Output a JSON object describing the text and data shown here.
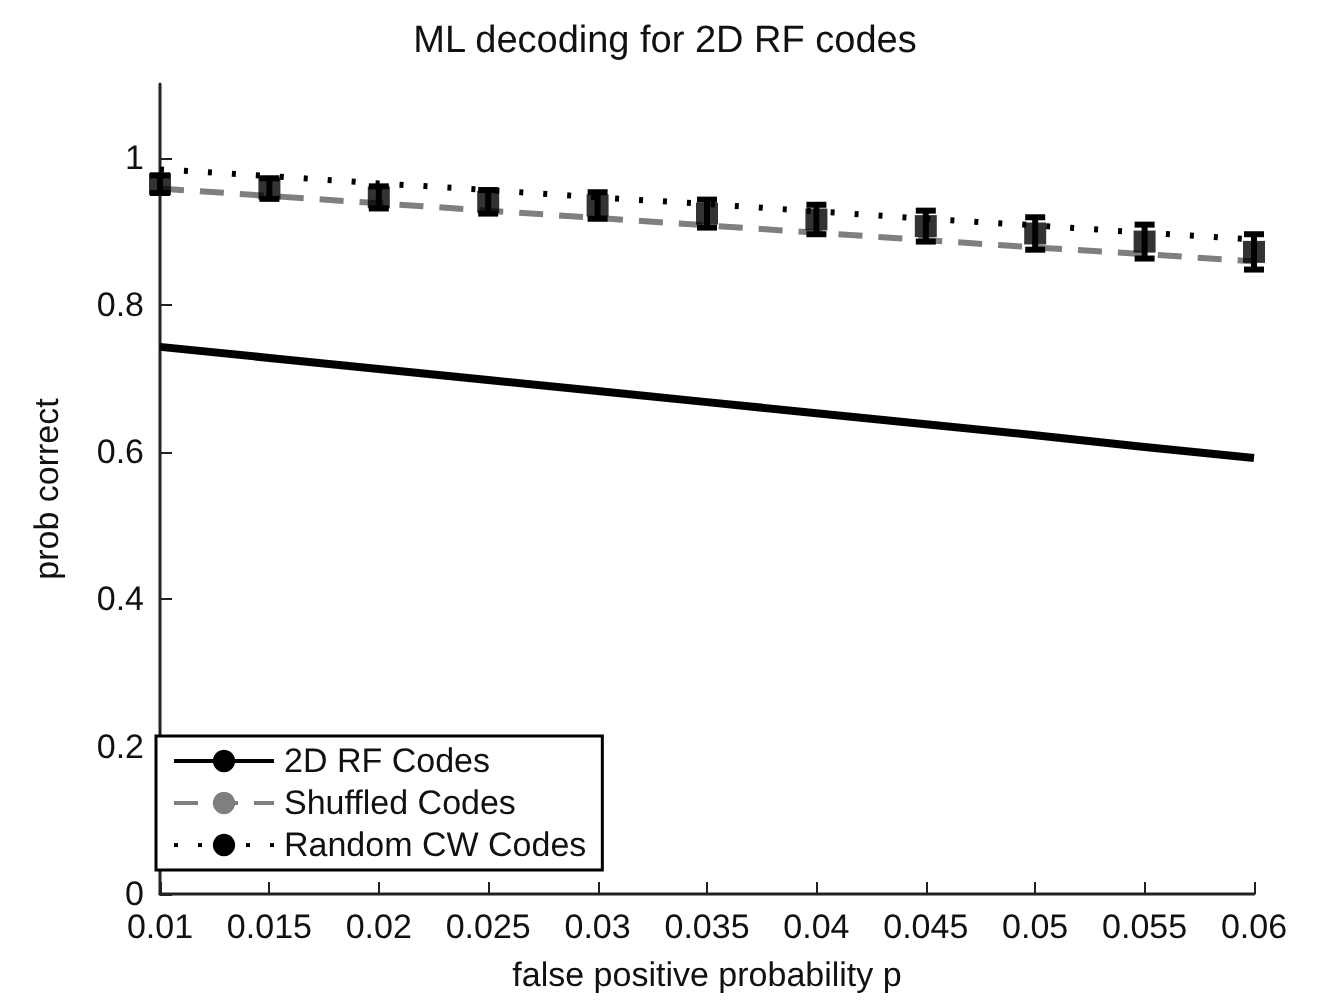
{
  "chart_data": {
    "type": "line",
    "title": "ML decoding for 2D RF codes",
    "xlabel": "false positive probability p",
    "ylabel": "prob correct",
    "x": [
      0.01,
      0.015,
      0.02,
      0.025,
      0.03,
      0.035,
      0.04,
      0.045,
      0.05,
      0.055,
      0.06
    ],
    "xlim": [
      0.01,
      0.06
    ],
    "xticks": [
      0.01,
      0.015,
      0.02,
      0.025,
      0.03,
      0.035,
      0.04,
      0.045,
      0.05,
      0.055,
      0.06
    ],
    "ylim": [
      0,
      1.1
    ],
    "yticks": [
      0,
      0.2,
      0.4,
      0.6,
      0.8,
      1
    ],
    "series": [
      {
        "name": "2D RF Codes",
        "color": "#000000",
        "line_style": "solid",
        "values": [
          0.743,
          0.728,
          0.713,
          0.698,
          0.683,
          0.668,
          0.653,
          0.638,
          0.623,
          0.607,
          0.592
        ]
      },
      {
        "name": "Shuffled Codes",
        "color": "#7f7f7f",
        "line_style": "dashed",
        "values": [
          0.958,
          0.948,
          0.938,
          0.928,
          0.918,
          0.908,
          0.898,
          0.888,
          0.878,
          0.869,
          0.859
        ]
      },
      {
        "name": "Random CW Codes",
        "color": "#000000",
        "line_style": "dotted",
        "values": [
          0.984,
          0.975,
          0.965,
          0.956,
          0.946,
          0.937,
          0.927,
          0.917,
          0.908,
          0.898,
          0.889
        ]
      },
      {
        "type": "scatter",
        "color": "#000000",
        "marker": "square",
        "values": [
          0.964,
          0.958,
          0.946,
          0.94,
          0.935,
          0.924,
          0.916,
          0.907,
          0.897,
          0.886,
          0.872
        ],
        "errors": [
          0.012,
          0.014,
          0.015,
          0.016,
          0.018,
          0.019,
          0.02,
          0.021,
          0.022,
          0.023,
          0.024
        ]
      }
    ],
    "grid": false,
    "legend": "bottom left"
  }
}
